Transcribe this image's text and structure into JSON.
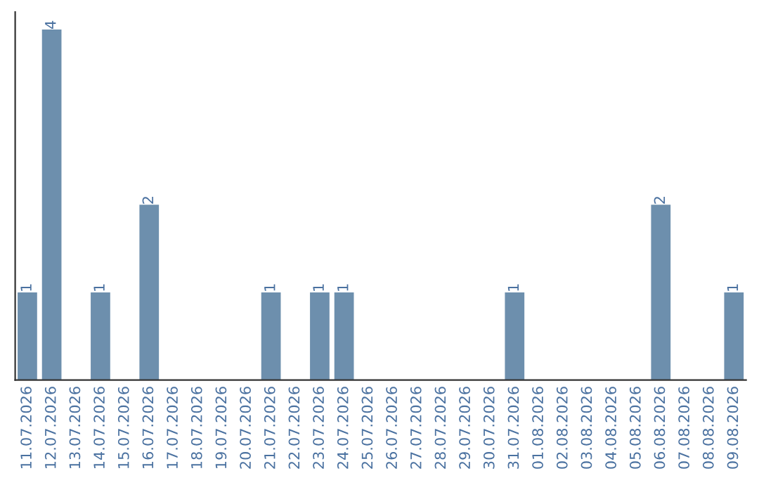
{
  "chart_data": {
    "type": "bar",
    "categories": [
      "11.07.2026",
      "12.07.2026",
      "13.07.2026",
      "14.07.2026",
      "15.07.2026",
      "16.07.2026",
      "17.07.2026",
      "18.07.2026",
      "19.07.2026",
      "20.07.2026",
      "21.07.2026",
      "22.07.2026",
      "23.07.2026",
      "24.07.2026",
      "25.07.2026",
      "26.07.2026",
      "27.07.2026",
      "28.07.2026",
      "29.07.2026",
      "30.07.2026",
      "31.07.2026",
      "01.08.2026",
      "02.08.2026",
      "03.08.2026",
      "04.08.2026",
      "05.08.2026",
      "06.08.2026",
      "07.08.2026",
      "08.08.2026",
      "09.08.2026"
    ],
    "values": [
      1,
      4,
      0,
      1,
      0,
      2,
      0,
      0,
      0,
      0,
      1,
      0,
      1,
      1,
      0,
      0,
      0,
      0,
      0,
      0,
      1,
      0,
      0,
      0,
      0,
      0,
      2,
      0,
      0,
      1
    ],
    "value_labels": [
      "1",
      "4",
      null,
      "1",
      null,
      "2",
      null,
      null,
      null,
      null,
      "1",
      null,
      "1",
      "1",
      null,
      null,
      null,
      null,
      null,
      null,
      "1",
      null,
      null,
      null,
      null,
      null,
      "2",
      null,
      null,
      "1"
    ],
    "color": "#6d8fad",
    "ylim": [
      0,
      4.2
    ],
    "tick_labels": "x",
    "grid": false
  }
}
